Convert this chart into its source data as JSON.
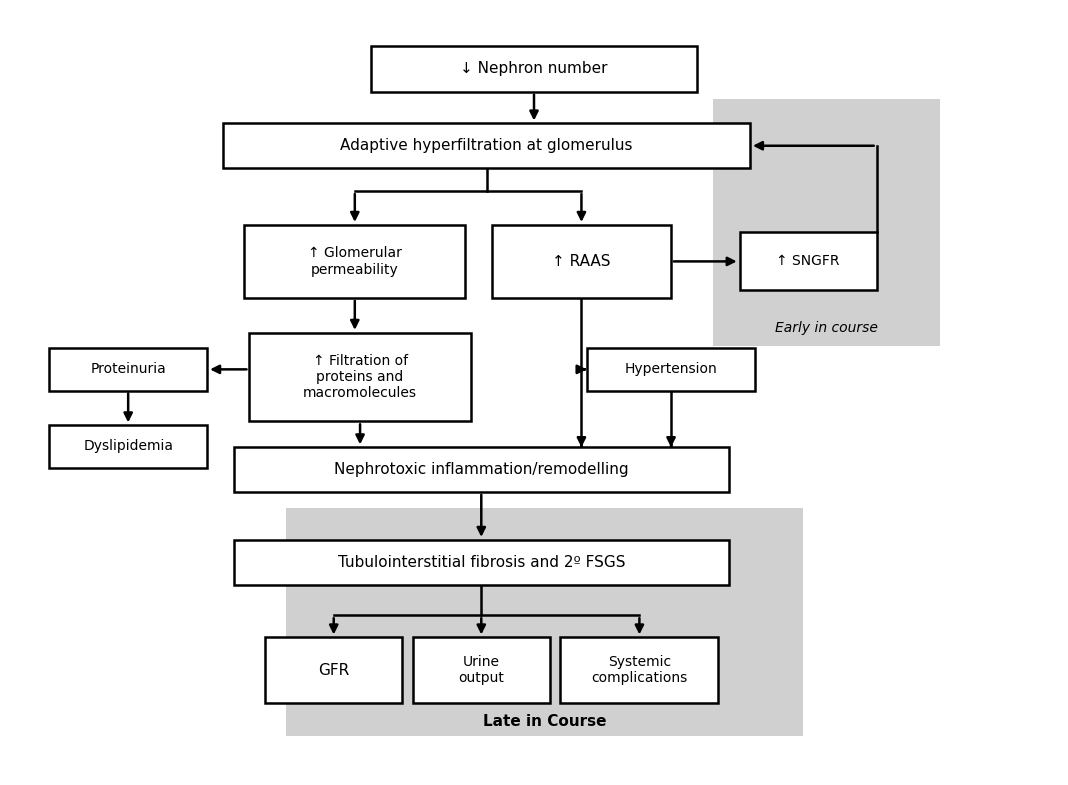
{
  "background_color": "#ffffff",
  "gray_color": "#d0d0d0",
  "box_fc": "#ffffff",
  "box_ec": "#000000",
  "lw": 1.8,
  "fs": 11,
  "boxes": {
    "nephron": [
      0.5,
      0.92,
      0.31,
      0.06
    ],
    "adaptive": [
      0.455,
      0.82,
      0.5,
      0.058
    ],
    "glomerular": [
      0.33,
      0.67,
      0.21,
      0.095
    ],
    "raas": [
      0.545,
      0.67,
      0.17,
      0.095
    ],
    "sngfr": [
      0.76,
      0.67,
      0.13,
      0.075
    ],
    "filtration": [
      0.335,
      0.52,
      0.21,
      0.115
    ],
    "proteinuria": [
      0.115,
      0.53,
      0.15,
      0.055
    ],
    "dyslipidemia": [
      0.115,
      0.43,
      0.15,
      0.055
    ],
    "hypertension": [
      0.63,
      0.53,
      0.16,
      0.055
    ],
    "nephrotoxic": [
      0.45,
      0.4,
      0.47,
      0.058
    ],
    "tubulointerstitial": [
      0.45,
      0.28,
      0.47,
      0.058
    ],
    "gfr": [
      0.31,
      0.14,
      0.13,
      0.085
    ],
    "urine": [
      0.45,
      0.14,
      0.13,
      0.085
    ],
    "systemic": [
      0.6,
      0.14,
      0.15,
      0.085
    ]
  },
  "labels": {
    "nephron": "↓ Nephron number",
    "adaptive": "Adaptive hyperfiltration at glomerulus",
    "glomerular": "↑ Glomerular\npermeability",
    "raas": "↑ RAAS",
    "sngfr": "↑ SNGFR",
    "filtration": "↑ Filtration of\nproteins and\nmacromolecules",
    "proteinuria": "Proteinuria",
    "dyslipidemia": "Dyslipidemia",
    "hypertension": "Hypertension",
    "nephrotoxic": "Nephrotoxic inflammation/remodelling",
    "tubulointerstitial": "Tubulointerstitial fibrosis and 2º FSGS",
    "gfr": "GFR",
    "urine": "Urine\noutput",
    "systemic": "Systemic\ncomplications"
  },
  "fontsizes": {
    "nephron": 11,
    "adaptive": 11,
    "glomerular": 10,
    "raas": 11,
    "sngfr": 10,
    "filtration": 10,
    "proteinuria": 10,
    "dyslipidemia": 10,
    "hypertension": 10,
    "nephrotoxic": 11,
    "tubulointerstitial": 11,
    "gfr": 11,
    "urine": 10,
    "systemic": 10
  },
  "early_region": [
    0.67,
    0.56,
    0.215,
    0.32
  ],
  "late_region": [
    0.265,
    0.055,
    0.49,
    0.295
  ],
  "early_label": [
    0.777,
    0.575,
    "Early in course"
  ],
  "late_label": [
    0.51,
    0.063,
    "Late in Course"
  ]
}
